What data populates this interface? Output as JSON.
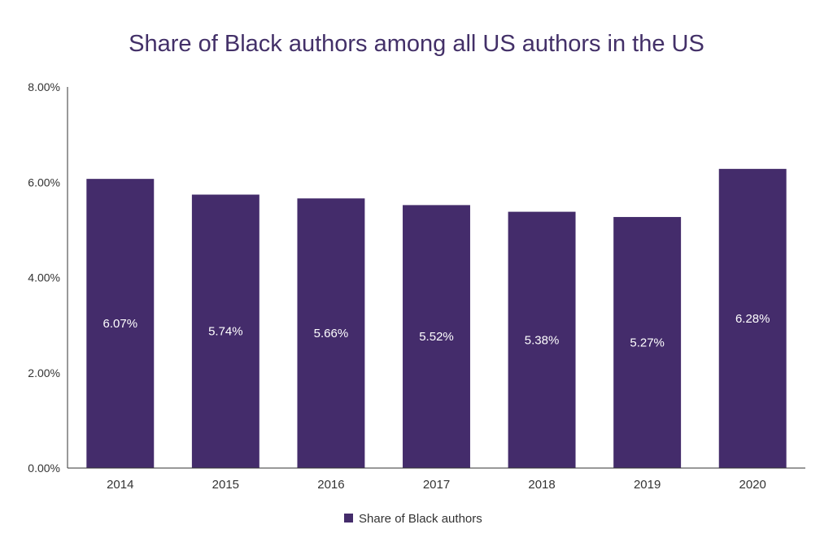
{
  "chart_data": {
    "type": "bar",
    "title": "Share of Black authors among all US authors in the US",
    "categories": [
      "2014",
      "2015",
      "2016",
      "2017",
      "2018",
      "2019",
      "2020"
    ],
    "series": [
      {
        "name": "Share of Black authors",
        "values": [
          6.07,
          5.74,
          5.66,
          5.52,
          5.38,
          5.27,
          6.28
        ],
        "labels": [
          "6.07%",
          "5.74%",
          "5.66%",
          "5.52%",
          "5.38%",
          "5.27%",
          "6.28%"
        ],
        "color": "#442c6b"
      }
    ],
    "ylim": [
      0,
      8
    ],
    "yticks": [
      {
        "value": 0,
        "label": "0.00%"
      },
      {
        "value": 2,
        "label": "2.00%"
      },
      {
        "value": 4,
        "label": "4.00%"
      },
      {
        "value": 6,
        "label": "6.00%"
      },
      {
        "value": 8,
        "label": "8.00%"
      }
    ],
    "xlabel": "",
    "ylabel": "",
    "grid": false,
    "legend_position": "bottom",
    "colors": {
      "title": "#433068",
      "bar": "#442c6b",
      "axis": "#333333",
      "tick_label": "#333333",
      "data_label": "#ffffff"
    }
  }
}
